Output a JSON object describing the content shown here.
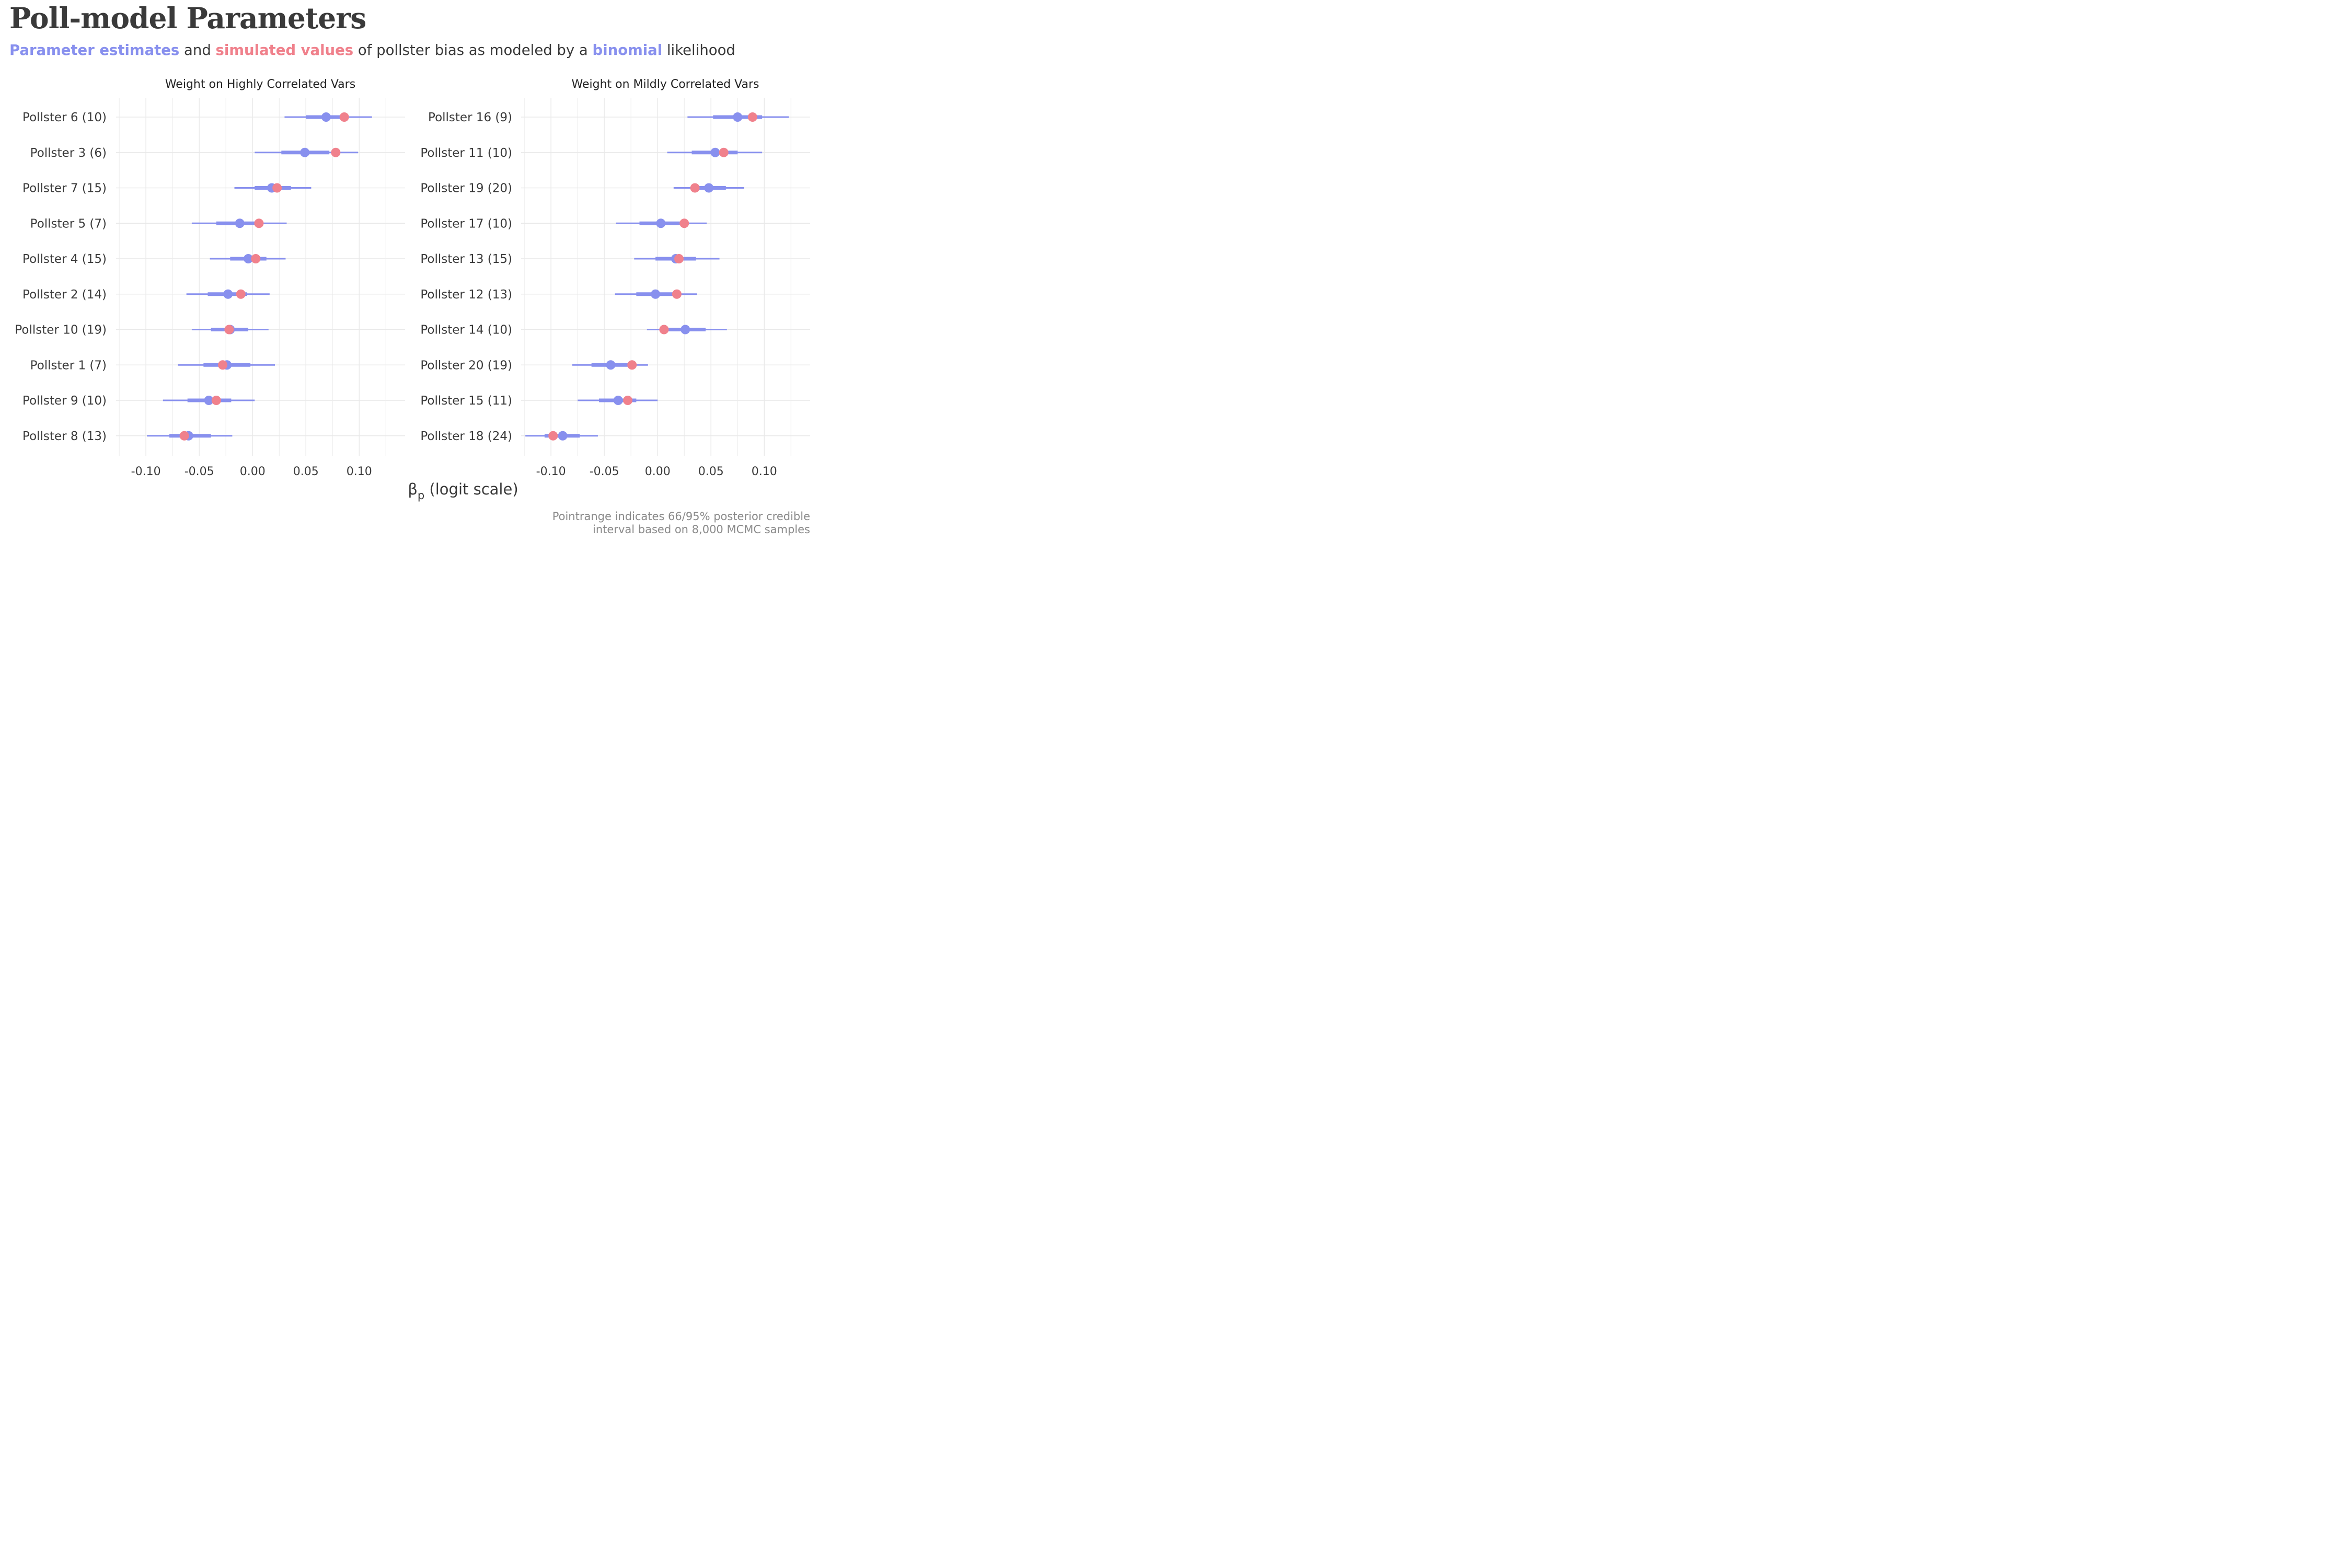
{
  "title": "Poll-model Parameters",
  "subtitle": {
    "part1": "Parameter estimates",
    "part2": " and ",
    "part3": "simulated values",
    "part4": " of pollster bias as modeled by a ",
    "part5": "binomial",
    "part6": " likelihood"
  },
  "caption": {
    "line1": "Pointrange indicates 66/95% posterior credible",
    "line2": "interval based on 8,000 MCMC samples"
  },
  "colors": {
    "estimate": "#8890ee",
    "simulated": "#f0818c",
    "text": "#3a3a3a",
    "muted": "#8a8a8a",
    "grid": "#e9e9e9"
  },
  "chart_data": {
    "type": "pointrange",
    "xlabel_main": "β",
    "xlabel_sub": "p",
    "xlabel_rest": " (logit scale)",
    "xlim": [
      -0.128,
      0.143
    ],
    "xticks": [
      -0.1,
      -0.05,
      0.0,
      0.05,
      0.1
    ],
    "xtick_labels": [
      "-0.10",
      "-0.05",
      "0.00",
      "0.05",
      "0.10"
    ],
    "grid": true,
    "panels": [
      {
        "title": "Weight on Highly Correlated Vars",
        "rows": [
          {
            "label": "Pollster 6 (10)",
            "est": 0.069,
            "lo66": 0.05,
            "hi66": 0.087,
            "lo95": 0.03,
            "hi95": 0.112,
            "sim": 0.086
          },
          {
            "label": "Pollster 3 (6)",
            "est": 0.049,
            "lo66": 0.027,
            "hi66": 0.072,
            "lo95": 0.002,
            "hi95": 0.099,
            "sim": 0.078
          },
          {
            "label": "Pollster 7 (15)",
            "est": 0.018,
            "lo66": 0.002,
            "hi66": 0.036,
            "lo95": -0.017,
            "hi95": 0.055,
            "sim": 0.023
          },
          {
            "label": "Pollster 5 (7)",
            "est": -0.012,
            "lo66": -0.034,
            "hi66": 0.008,
            "lo95": -0.057,
            "hi95": 0.032,
            "sim": 0.006
          },
          {
            "label": "Pollster 4 (15)",
            "est": -0.004,
            "lo66": -0.021,
            "hi66": 0.013,
            "lo95": -0.04,
            "hi95": 0.031,
            "sim": 0.003
          },
          {
            "label": "Pollster 2 (14)",
            "est": -0.023,
            "lo66": -0.042,
            "hi66": -0.005,
            "lo95": -0.062,
            "hi95": 0.016,
            "sim": -0.011
          },
          {
            "label": "Pollster 10 (19)",
            "est": -0.021,
            "lo66": -0.039,
            "hi66": -0.004,
            "lo95": -0.057,
            "hi95": 0.015,
            "sim": -0.022
          },
          {
            "label": "Pollster 1 (7)",
            "est": -0.024,
            "lo66": -0.046,
            "hi66": -0.002,
            "lo95": -0.07,
            "hi95": 0.021,
            "sim": -0.028
          },
          {
            "label": "Pollster 9 (10)",
            "est": -0.041,
            "lo66": -0.061,
            "hi66": -0.02,
            "lo95": -0.084,
            "hi95": 0.002,
            "sim": -0.034
          },
          {
            "label": "Pollster 8 (13)",
            "est": -0.06,
            "lo66": -0.078,
            "hi66": -0.039,
            "lo95": -0.099,
            "hi95": -0.019,
            "sim": -0.064
          }
        ]
      },
      {
        "title": "Weight on Mildly Correlated Vars",
        "rows": [
          {
            "label": "Pollster 16 (9)",
            "est": 0.075,
            "lo66": 0.052,
            "hi66": 0.098,
            "lo95": 0.028,
            "hi95": 0.123,
            "sim": 0.089
          },
          {
            "label": "Pollster 11 (10)",
            "est": 0.054,
            "lo66": 0.032,
            "hi66": 0.075,
            "lo95": 0.009,
            "hi95": 0.098,
            "sim": 0.062
          },
          {
            "label": "Pollster 19 (20)",
            "est": 0.048,
            "lo66": 0.034,
            "hi66": 0.064,
            "lo95": 0.015,
            "hi95": 0.081,
            "sim": 0.035
          },
          {
            "label": "Pollster 17 (10)",
            "est": 0.003,
            "lo66": -0.017,
            "hi66": 0.022,
            "lo95": -0.039,
            "hi95": 0.046,
            "sim": 0.025
          },
          {
            "label": "Pollster 13 (15)",
            "est": 0.017,
            "lo66": -0.002,
            "hi66": 0.036,
            "lo95": -0.022,
            "hi95": 0.058,
            "sim": 0.02
          },
          {
            "label": "Pollster 12 (13)",
            "est": -0.002,
            "lo66": -0.02,
            "hi66": 0.017,
            "lo95": -0.04,
            "hi95": 0.037,
            "sim": 0.018
          },
          {
            "label": "Pollster 14 (10)",
            "est": 0.026,
            "lo66": 0.008,
            "hi66": 0.045,
            "lo95": -0.01,
            "hi95": 0.065,
            "sim": 0.006
          },
          {
            "label": "Pollster 20 (19)",
            "est": -0.044,
            "lo66": -0.062,
            "hi66": -0.025,
            "lo95": -0.08,
            "hi95": -0.009,
            "sim": -0.024
          },
          {
            "label": "Pollster 15 (11)",
            "est": -0.037,
            "lo66": -0.055,
            "hi66": -0.02,
            "lo95": -0.075,
            "hi95": 0.0,
            "sim": -0.028
          },
          {
            "label": "Pollster 18 (24)",
            "est": -0.089,
            "lo66": -0.106,
            "hi66": -0.073,
            "lo95": -0.124,
            "hi95": -0.056,
            "sim": -0.098
          }
        ]
      }
    ]
  }
}
